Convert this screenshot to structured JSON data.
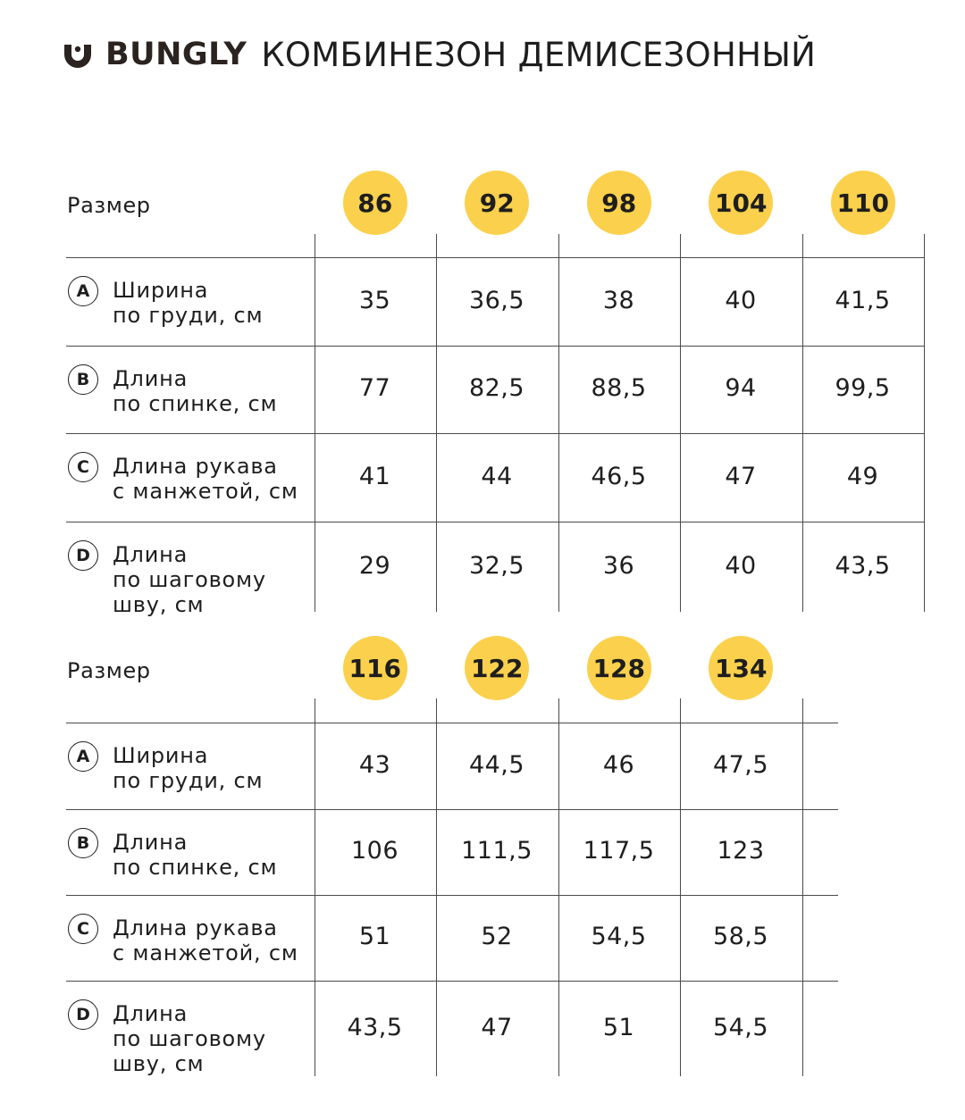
{
  "header": {
    "brand": "BUNGLY",
    "product": "КОМБИНЕЗОН ДЕМИСЕЗОННЫЙ",
    "logo_icon": "bungly-face-logo",
    "accent_color": "#fbd04c"
  },
  "tables": [
    {
      "size_label": "Размер",
      "sizes": [
        "86",
        "92",
        "98",
        "104",
        "110"
      ],
      "rows": [
        {
          "letter": "A",
          "label_lines": [
            "Ширина",
            "по груди, см"
          ],
          "values": [
            "35",
            "36,5",
            "38",
            "40",
            "41,5"
          ]
        },
        {
          "letter": "B",
          "label_lines": [
            "Длина",
            "по спинке, см"
          ],
          "values": [
            "77",
            "82,5",
            "88,5",
            "94",
            "99,5"
          ]
        },
        {
          "letter": "C",
          "label_lines": [
            "Длина рукава",
            "с манжетой, см"
          ],
          "values": [
            "41",
            "44",
            "46,5",
            "47",
            "49"
          ]
        },
        {
          "letter": "D",
          "label_lines": [
            "Длина",
            "по шаговому",
            "шву, см"
          ],
          "values": [
            "29",
            "32,5",
            "36",
            "40",
            "43,5"
          ]
        }
      ]
    },
    {
      "size_label": "Размер",
      "sizes": [
        "116",
        "122",
        "128",
        "134"
      ],
      "rows": [
        {
          "letter": "A",
          "label_lines": [
            "Ширина",
            "по груди, см"
          ],
          "values": [
            "43",
            "44,5",
            "46",
            "47,5"
          ]
        },
        {
          "letter": "B",
          "label_lines": [
            "Длина",
            "по спинке, см"
          ],
          "values": [
            "106",
            "111,5",
            "117,5",
            "123"
          ]
        },
        {
          "letter": "C",
          "label_lines": [
            "Длина рукава",
            "с манжетой, см"
          ],
          "values": [
            "51",
            "52",
            "54,5",
            "58,5"
          ]
        },
        {
          "letter": "D",
          "label_lines": [
            "Длина",
            "по шаговому",
            "шву, см"
          ],
          "values": [
            "43,5",
            "47",
            "51",
            "54,5"
          ]
        }
      ]
    }
  ]
}
